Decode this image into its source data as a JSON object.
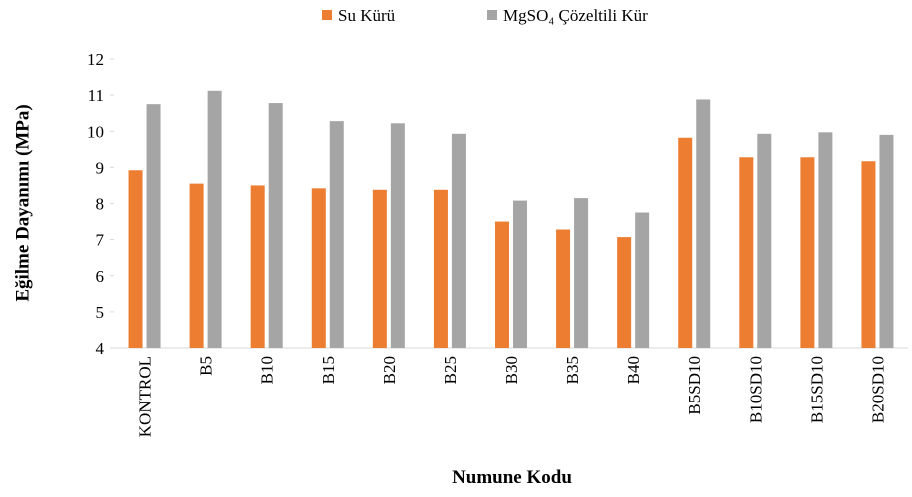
{
  "chart_data": {
    "type": "bar",
    "xlabel": "Numune Kodu",
    "ylabel": "Eğilme Dayanımı (MPa)",
    "categories": [
      "KONTROL",
      "B5",
      "B10",
      "B15",
      "B20",
      "B25",
      "B30",
      "B35",
      "B40",
      "B5SD10",
      "B10SD10",
      "B15SD10",
      "B20SD10"
    ],
    "series": [
      {
        "name": "Su Kürü",
        "color": "#ed7d31",
        "values": [
          8.92,
          8.55,
          8.5,
          8.42,
          8.38,
          8.38,
          7.5,
          7.28,
          7.07,
          9.82,
          9.28,
          9.28,
          9.17
        ]
      },
      {
        "name": "MgSO₄ Çözeltili  Kür",
        "color": "#a5a5a5",
        "values": [
          10.75,
          11.12,
          10.78,
          10.28,
          10.22,
          9.93,
          8.08,
          8.15,
          7.75,
          10.88,
          9.93,
          9.97,
          9.9
        ]
      }
    ],
    "ylim": [
      4,
      12
    ],
    "yticks": [
      4,
      5,
      6,
      7,
      8,
      9,
      10,
      11,
      12
    ],
    "legend": "top"
  }
}
